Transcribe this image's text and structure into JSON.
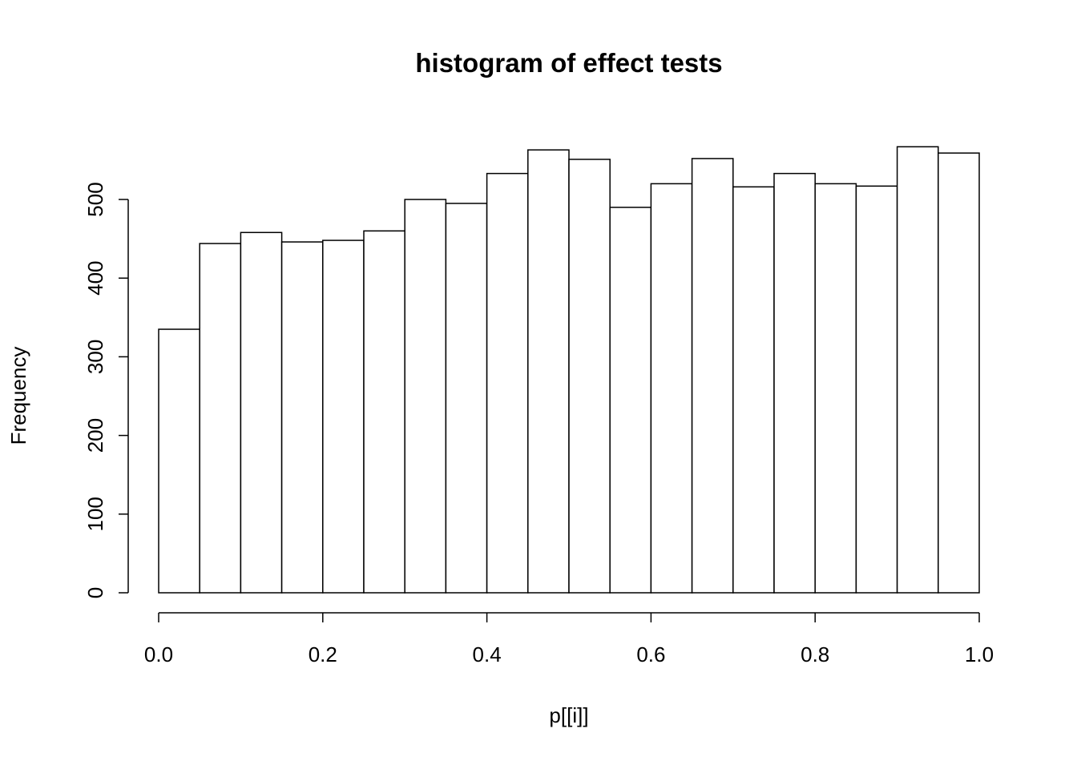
{
  "chart_data": {
    "type": "bar",
    "subtype": "histogram",
    "title": "histogram of effect tests",
    "xlabel": "p[[i]]",
    "ylabel": "Frequency",
    "bin_start": 0.0,
    "bin_width": 0.05,
    "values": [
      335,
      444,
      458,
      446,
      448,
      460,
      500,
      495,
      533,
      563,
      551,
      490,
      520,
      552,
      516,
      533,
      520,
      517,
      567,
      559
    ],
    "x_ticks": [
      0.0,
      0.2,
      0.4,
      0.6,
      0.8,
      1.0
    ],
    "x_tick_labels": [
      "0.0",
      "0.2",
      "0.4",
      "0.6",
      "0.8",
      "1.0"
    ],
    "y_ticks": [
      0,
      100,
      200,
      300,
      400,
      500
    ],
    "y_tick_labels": [
      "0",
      "100",
      "200",
      "300",
      "400",
      "500"
    ],
    "xlim": [
      0.0,
      1.0
    ],
    "ylim": [
      0,
      570
    ],
    "grid": false,
    "legend": "none",
    "bar_fill": "#ffffff",
    "bar_stroke": "#000000",
    "axis_color": "#000000",
    "background": "#ffffff"
  }
}
